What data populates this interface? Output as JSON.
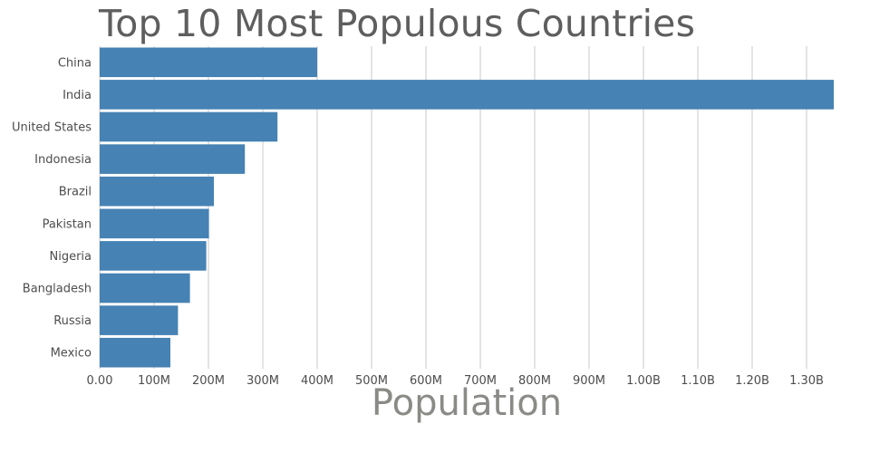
{
  "chart_data": {
    "type": "bar",
    "orientation": "horizontal",
    "title": "Top 10 Most Populous Countries",
    "xlabel": "Population",
    "ylabel": "",
    "categories": [
      "China",
      "India",
      "United States",
      "Indonesia",
      "Brazil",
      "Pakistan",
      "Nigeria",
      "Bangladesh",
      "Russia",
      "Mexico"
    ],
    "values": [
      400000000,
      1350000000,
      327000000,
      267000000,
      210000000,
      201000000,
      196000000,
      166000000,
      144000000,
      130000000
    ],
    "xlim": [
      0,
      1350000000
    ],
    "x_ticks": [
      0,
      100000000,
      200000000,
      300000000,
      400000000,
      500000000,
      600000000,
      700000000,
      800000000,
      900000000,
      1000000000,
      1100000000,
      1200000000,
      1300000000
    ],
    "x_tick_labels": [
      "0.00",
      "100M",
      "200M",
      "300M",
      "400M",
      "500M",
      "600M",
      "700M",
      "800M",
      "900M",
      "1.00B",
      "1.10B",
      "1.20B",
      "1.30B"
    ],
    "grid": "vertical",
    "legend": "none",
    "bar_color": "#4682b4",
    "grid_color": "#c8c8c8"
  }
}
